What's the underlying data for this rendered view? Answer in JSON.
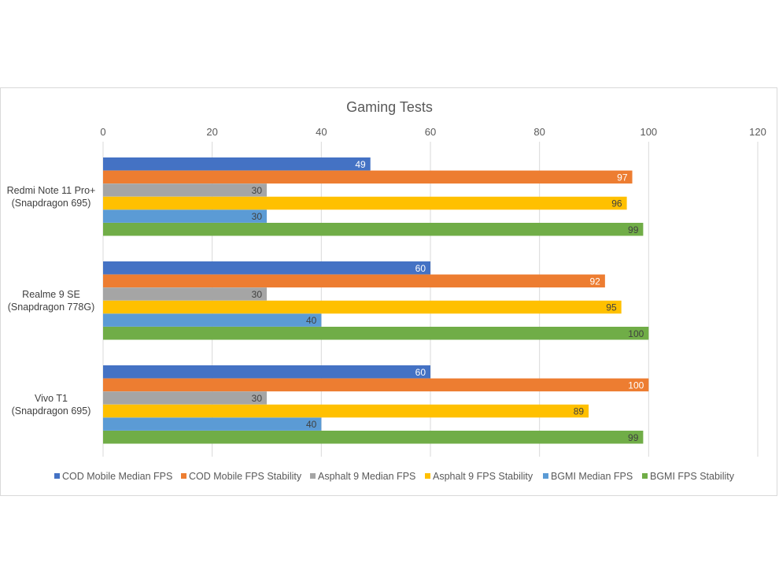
{
  "chart_data": {
    "type": "bar",
    "orientation": "horizontal",
    "title": "Gaming Tests",
    "xlim": [
      0,
      120
    ],
    "ticks": [
      0,
      20,
      40,
      60,
      80,
      100,
      120
    ],
    "grid": true,
    "legend_position": "bottom",
    "categories": [
      [
        "Redmi Note 11 Pro+",
        "(Snapdragon 695)"
      ],
      [
        "Realme 9 SE",
        "(Snapdragon 778G)"
      ],
      [
        "Vivo T1",
        "(Snapdragon 695)"
      ]
    ],
    "series": [
      {
        "name": "COD Mobile Median FPS",
        "color": "#4472C4",
        "label_color": "#ffffff",
        "values": [
          49,
          60,
          60
        ]
      },
      {
        "name": "COD Mobile FPS Stability",
        "color": "#ED7D31",
        "label_color": "#ffffff",
        "values": [
          97,
          92,
          100
        ]
      },
      {
        "name": "Asphalt 9 Median FPS",
        "color": "#A5A5A5",
        "label_color": "#404040",
        "values": [
          30,
          30,
          30
        ]
      },
      {
        "name": "Asphalt 9 FPS Stability",
        "color": "#FFC000",
        "label_color": "#404040",
        "values": [
          96,
          95,
          89
        ]
      },
      {
        "name": "BGMI Median FPS",
        "color": "#5B9BD5",
        "label_color": "#404040",
        "values": [
          30,
          40,
          40
        ]
      },
      {
        "name": "BGMI FPS Stability",
        "color": "#70AD47",
        "label_color": "#404040",
        "values": [
          99,
          100,
          99
        ]
      }
    ]
  }
}
